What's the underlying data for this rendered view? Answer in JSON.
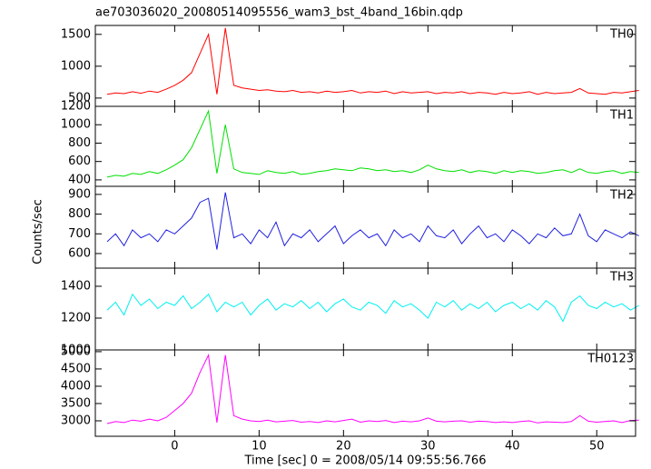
{
  "chart_data": [
    {
      "type": "line",
      "title": "ae703036020_20080514095556_wam3_bst_4band_16bin.qdp",
      "label": "TH0",
      "color": "#ff0000",
      "x": [
        -8,
        -7,
        -6,
        -5,
        -4,
        -3,
        -2,
        -1,
        0,
        1,
        2,
        3,
        4,
        5,
        6,
        7,
        8,
        9,
        10,
        11,
        12,
        13,
        14,
        15,
        16,
        17,
        18,
        19,
        20,
        21,
        22,
        23,
        24,
        25,
        26,
        27,
        28,
        29,
        30,
        31,
        32,
        33,
        34,
        35,
        36,
        37,
        38,
        39,
        40,
        41,
        42,
        43,
        44,
        45,
        46,
        47,
        48,
        49,
        50,
        51,
        52,
        53,
        54,
        55
      ],
      "values": [
        560,
        580,
        570,
        600,
        575,
        610,
        590,
        640,
        700,
        780,
        900,
        1200,
        1500,
        560,
        1600,
        700,
        660,
        640,
        620,
        630,
        610,
        600,
        620,
        590,
        600,
        580,
        610,
        590,
        600,
        620,
        580,
        600,
        590,
        610,
        570,
        600,
        580,
        590,
        600,
        570,
        590,
        580,
        600,
        570,
        590,
        580,
        560,
        590,
        570,
        580,
        600,
        560,
        590,
        570,
        580,
        590,
        650,
        580,
        570,
        560,
        590,
        580,
        600,
        620
      ],
      "xlim": [
        -9.4,
        54.6
      ],
      "xticks": [
        0,
        10,
        20,
        30,
        40,
        50
      ],
      "ylim": [
        370,
        1640
      ],
      "yticks": [
        500,
        1000,
        1500
      ]
    },
    {
      "type": "line",
      "label": "TH1",
      "color": "#00e000",
      "x": [
        -8,
        -7,
        -6,
        -5,
        -4,
        -3,
        -2,
        -1,
        0,
        1,
        2,
        3,
        4,
        5,
        6,
        7,
        8,
        9,
        10,
        11,
        12,
        13,
        14,
        15,
        16,
        17,
        18,
        19,
        20,
        21,
        22,
        23,
        24,
        25,
        26,
        27,
        28,
        29,
        30,
        31,
        32,
        33,
        34,
        35,
        36,
        37,
        38,
        39,
        40,
        41,
        42,
        43,
        44,
        45,
        46,
        47,
        48,
        49,
        50,
        51,
        52,
        53,
        54,
        55
      ],
      "values": [
        430,
        450,
        440,
        470,
        460,
        490,
        470,
        510,
        560,
        620,
        750,
        950,
        1150,
        470,
        1000,
        520,
        480,
        470,
        460,
        500,
        480,
        470,
        490,
        460,
        470,
        490,
        500,
        520,
        510,
        500,
        530,
        520,
        500,
        510,
        490,
        500,
        480,
        510,
        560,
        520,
        500,
        490,
        510,
        480,
        500,
        490,
        470,
        500,
        480,
        500,
        490,
        470,
        480,
        500,
        510,
        480,
        520,
        480,
        470,
        490,
        500,
        470,
        490,
        480
      ],
      "xlim": [
        -9.4,
        54.6
      ],
      "xticks": [
        0,
        10,
        20,
        30,
        40,
        50
      ],
      "ylim": [
        330,
        1200
      ],
      "yticks": [
        400,
        600,
        800,
        1000,
        1200
      ]
    },
    {
      "type": "line",
      "label": "TH2",
      "y_label": "Counts/sec",
      "color": "#2020e0",
      "x": [
        -8,
        -7,
        -6,
        -5,
        -4,
        -3,
        -2,
        -1,
        0,
        1,
        2,
        3,
        4,
        5,
        6,
        7,
        8,
        9,
        10,
        11,
        12,
        13,
        14,
        15,
        16,
        17,
        18,
        19,
        20,
        21,
        22,
        23,
        24,
        25,
        26,
        27,
        28,
        29,
        30,
        31,
        32,
        33,
        34,
        35,
        36,
        37,
        38,
        39,
        40,
        41,
        42,
        43,
        44,
        45,
        46,
        47,
        48,
        49,
        50,
        51,
        52,
        53,
        54,
        55
      ],
      "values": [
        660,
        700,
        640,
        720,
        680,
        700,
        660,
        720,
        700,
        740,
        780,
        860,
        880,
        620,
        910,
        680,
        700,
        650,
        720,
        680,
        760,
        640,
        700,
        680,
        720,
        660,
        700,
        740,
        650,
        690,
        720,
        680,
        700,
        640,
        720,
        680,
        700,
        660,
        740,
        690,
        680,
        720,
        650,
        700,
        740,
        680,
        700,
        660,
        720,
        690,
        650,
        700,
        680,
        730,
        690,
        700,
        800,
        690,
        660,
        720,
        700,
        680,
        710,
        690
      ],
      "xlim": [
        -9.4,
        54.6
      ],
      "xticks": [
        0,
        10,
        20,
        30,
        40,
        50
      ],
      "ylim": [
        526,
        941
      ],
      "yticks": [
        600,
        700,
        800,
        900
      ]
    },
    {
      "type": "line",
      "label": "TH3",
      "color": "#00f0f0",
      "x": [
        -8,
        -7,
        -6,
        -5,
        -4,
        -3,
        -2,
        -1,
        0,
        1,
        2,
        3,
        4,
        5,
        6,
        7,
        8,
        9,
        10,
        11,
        12,
        13,
        14,
        15,
        16,
        17,
        18,
        19,
        20,
        21,
        22,
        23,
        24,
        25,
        26,
        27,
        28,
        29,
        30,
        31,
        32,
        33,
        34,
        35,
        36,
        37,
        38,
        39,
        40,
        41,
        42,
        43,
        44,
        45,
        46,
        47,
        48,
        49,
        50,
        51,
        52,
        53,
        54,
        55
      ],
      "values": [
        1250,
        1300,
        1220,
        1350,
        1280,
        1320,
        1260,
        1300,
        1280,
        1340,
        1260,
        1300,
        1350,
        1240,
        1300,
        1270,
        1300,
        1220,
        1280,
        1320,
        1250,
        1290,
        1270,
        1310,
        1260,
        1300,
        1240,
        1290,
        1320,
        1270,
        1250,
        1300,
        1280,
        1230,
        1310,
        1270,
        1290,
        1250,
        1200,
        1300,
        1270,
        1310,
        1250,
        1290,
        1260,
        1300,
        1240,
        1280,
        1300,
        1260,
        1290,
        1250,
        1310,
        1270,
        1180,
        1300,
        1340,
        1280,
        1260,
        1300,
        1270,
        1290,
        1250,
        1280
      ],
      "xlim": [
        -9.4,
        54.6
      ],
      "xticks": [
        0,
        10,
        20,
        30,
        40,
        50
      ],
      "ylim": [
        1000,
        1514
      ],
      "yticks": [
        1000,
        1200,
        1400
      ]
    },
    {
      "type": "line",
      "label": "TH0123",
      "x_label": "Time [sec] 0 = 2008/05/14 09:55:56.766",
      "color": "#ff00ff",
      "x": [
        -8,
        -7,
        -6,
        -5,
        -4,
        -3,
        -2,
        -1,
        0,
        1,
        2,
        3,
        4,
        5,
        6,
        7,
        8,
        9,
        10,
        11,
        12,
        13,
        14,
        15,
        16,
        17,
        18,
        19,
        20,
        21,
        22,
        23,
        24,
        25,
        26,
        27,
        28,
        29,
        30,
        31,
        32,
        33,
        34,
        35,
        36,
        37,
        38,
        39,
        40,
        41,
        42,
        43,
        44,
        45,
        46,
        47,
        48,
        49,
        50,
        51,
        52,
        53,
        54,
        55
      ],
      "values": [
        2920,
        2980,
        2950,
        3020,
        2990,
        3050,
        3000,
        3100,
        3300,
        3500,
        3800,
        4400,
        4900,
        2950,
        4900,
        3150,
        3050,
        3000,
        2980,
        3020,
        2970,
        2990,
        3010,
        2960,
        2980,
        2950,
        3000,
        2970,
        3010,
        3050,
        2960,
        3000,
        2980,
        3010,
        2950,
        2990,
        2970,
        3000,
        3080,
        2990,
        2970,
        2990,
        3000,
        2960,
        2990,
        2980,
        2950,
        2970,
        2950,
        2980,
        3000,
        2940,
        2970,
        2960,
        2950,
        2980,
        3150,
        2990,
        2960,
        2980,
        3000,
        2950,
        3010,
        3020
      ],
      "xlim": [
        -9.4,
        54.6
      ],
      "xticks": [
        0,
        10,
        20,
        30,
        40,
        50
      ],
      "ylim": [
        2553,
        5050
      ],
      "yticks": [
        3000,
        3500,
        4000,
        4500,
        5000
      ]
    }
  ]
}
